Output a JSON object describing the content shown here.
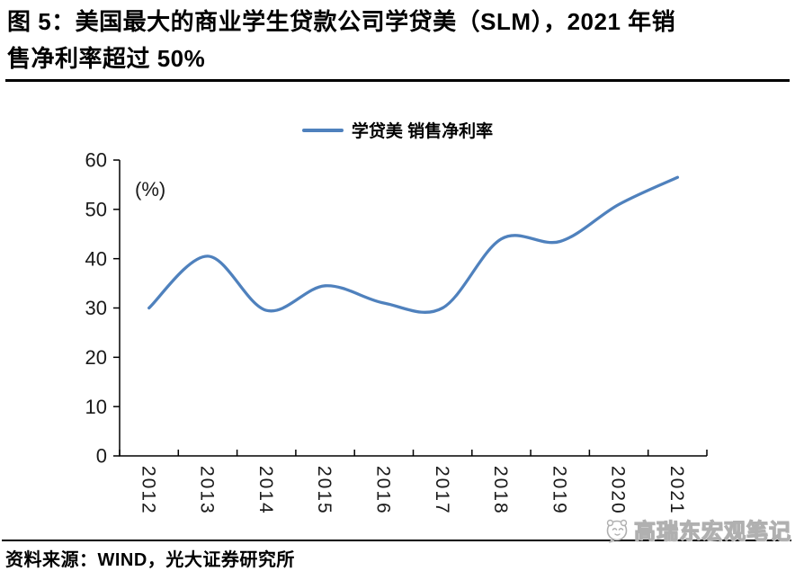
{
  "header": {
    "title_line1": "图 5：美国最大的商业学生贷款公司学贷美（SLM），2021 年销",
    "title_line2": "售净利率超过 50%"
  },
  "legend": {
    "label": "学贷美 销售净利率"
  },
  "chart_data": {
    "type": "line",
    "title": "学贷美 销售净利率",
    "unit_label": "(%)",
    "categories": [
      "2012",
      "2013",
      "2014",
      "2015",
      "2016",
      "2017",
      "2018",
      "2019",
      "2020",
      "2021"
    ],
    "series": [
      {
        "name": "学贷美 销售净利率",
        "values": [
          30,
          40.5,
          29.5,
          34.5,
          31,
          30,
          44,
          43.5,
          51,
          56.5
        ]
      }
    ],
    "ylim": [
      0,
      60
    ],
    "yticks": [
      0,
      10,
      20,
      30,
      40,
      50,
      60
    ],
    "xlabel": "",
    "ylabel": "",
    "grid": false,
    "smooth": true,
    "legend_position": "top-center",
    "line_color": "#4F81BD",
    "axis_color": "#000000",
    "tick_label_color": "#1a1a1a"
  },
  "footer": {
    "source": "资料来源：WIND，光大证券研究所"
  },
  "watermark": {
    "text": "高瑞东宏观笔记"
  }
}
